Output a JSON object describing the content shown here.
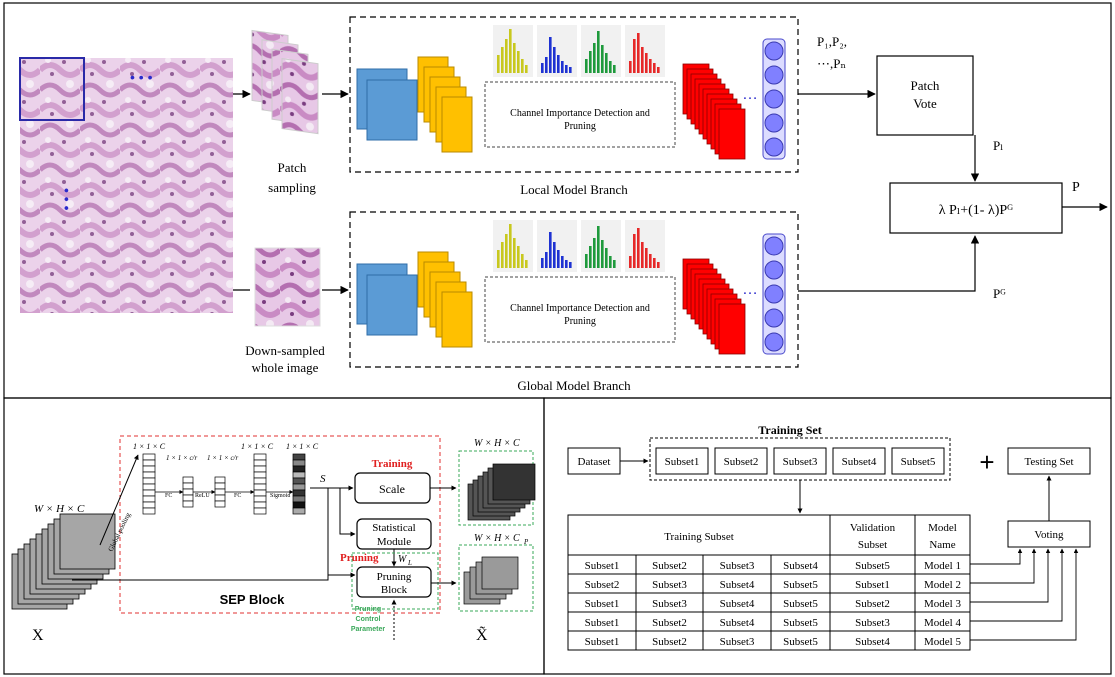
{
  "top": {
    "patch_sampling": [
      "Patch",
      "sampling"
    ],
    "down_sampled": [
      "Down-sampled",
      "whole image"
    ],
    "channel_label": [
      "Channel Importance Detection and",
      "Pruning"
    ],
    "local_branch": "Local Model Branch",
    "global_branch": "Global Model Branch",
    "p_list": [
      "P₁,P₂,",
      "⋯,Pₙ"
    ],
    "patch_vote": [
      "Patch",
      "Vote"
    ],
    "p_l": "Pₗ",
    "p_g": "Pᴳ",
    "fusion": "λ Pₗ+(1- λ)Pᴳ",
    "p_out": "P",
    "ellipsis": "…",
    "dots": "• • •"
  },
  "sep": {
    "whc_in": "W × H × C",
    "global_pooling": "Global pooling",
    "dim1": "1 × 1 × C",
    "dim_r1": "1 × 1 × c/r",
    "dim_r2": "1 × 1 × c/r",
    "dim2": "1 × 1 × C",
    "dim3": "1 × 1 × C",
    "fc1": "FC",
    "relu": "ReLU",
    "fc2": "FC",
    "sigmoid": "Sigmoid",
    "s": "S",
    "training": "Training",
    "scale": "Scale",
    "statistical": [
      "Statistical",
      "Module"
    ],
    "wl": "W",
    "wl_sub": "L",
    "pruning": "Pruning",
    "pruning_block": [
      "Pruning",
      "Block"
    ],
    "pcp": [
      "Pruning",
      "Control",
      "Parameter"
    ],
    "sep_block": "SEP Block",
    "whc_out": "W × H × C",
    "whcp_out": "W × H × C",
    "whcp_sub": "P",
    "x": "X",
    "x_tilde": "X̃"
  },
  "right": {
    "training_set": "Training Set",
    "dataset": "Dataset",
    "subsets": [
      "Subset1",
      "Subset2",
      "Subset3",
      "Subset4",
      "Subset5"
    ],
    "plus": "+",
    "testing_set": "Testing Set",
    "voting": "Voting",
    "table_headers": {
      "training_subset": "Training Subset",
      "validation": [
        "Validation",
        "Subset"
      ],
      "model": [
        "Model",
        "Name"
      ]
    },
    "rows": [
      [
        "Subset1",
        "Subset2",
        "Subset3",
        "Subset4",
        "Subset5",
        "Model 1"
      ],
      [
        "Subset2",
        "Subset3",
        "Subset4",
        "Subset5",
        "Subset1",
        "Model 2"
      ],
      [
        "Subset1",
        "Subset3",
        "Subset4",
        "Subset5",
        "Subset2",
        "Model 3"
      ],
      [
        "Subset1",
        "Subset2",
        "Subset4",
        "Subset5",
        "Subset3",
        "Model 4"
      ],
      [
        "Subset1",
        "Subset2",
        "Subset3",
        "Subset5",
        "Subset4",
        "Model 5"
      ]
    ]
  },
  "colors": {
    "blue": "#5b9bd5",
    "orange": "#ffc000",
    "red": "#ff0000",
    "circle": "#8080ff",
    "tissue": "#c98bc4",
    "red_dash": "#e03030",
    "green_dash": "#3aa85a"
  }
}
